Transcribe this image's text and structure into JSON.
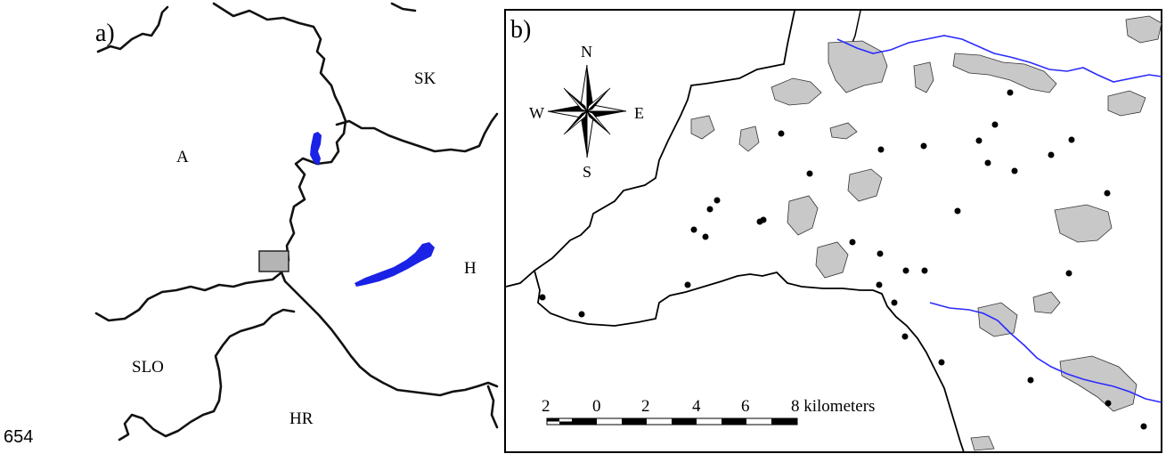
{
  "line_number": "654",
  "panel_a": {
    "label": "a)",
    "countries": {
      "sk": "SK",
      "a": "A",
      "h": "H",
      "slo": "SLO",
      "hr": "HR"
    },
    "water_color": "#1a22e6",
    "border_color": "#111111",
    "inset_color": "#b4b4b4"
  },
  "panel_b": {
    "label": "b)",
    "compass": {
      "n": "N",
      "s": "S",
      "e": "E",
      "w": "W"
    },
    "scale": {
      "ticks": [
        "2",
        "0",
        "2",
        "4",
        "6",
        "8 kilometers"
      ]
    },
    "river_color": "#2a2aff",
    "settlement_color": "#c8c8c8"
  }
}
